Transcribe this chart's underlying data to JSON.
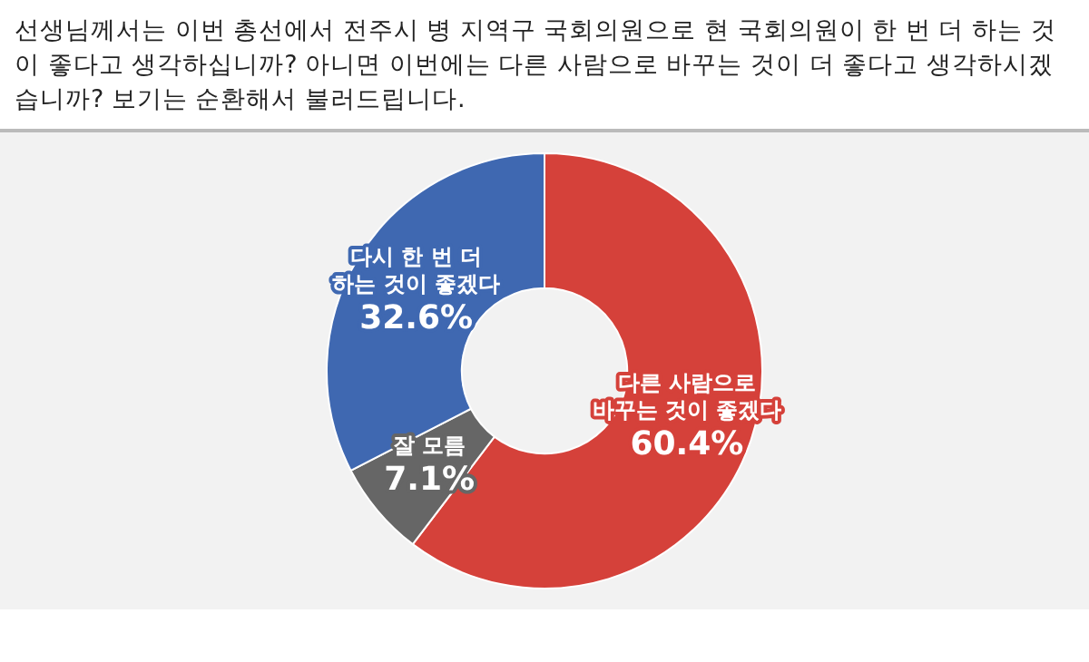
{
  "chart_data": {
    "type": "donut",
    "title": "선생님께서는 이번 총선에서 전주시 병 지역구 국회의원으로 현 국회의원이 한 번 더 하는 것이 좋다고 생각하십니까? 아니면 이번에는 다른 사람으로 바꾸는 것이 더 좋다고 생각하시겠습니까? 보기는 순환해서 불러드립니다.",
    "categories": [
      "다른 사람으로 바꾸는 것이 좋겠다",
      "잘 모름",
      "다시 한 번 더 하는 것이 좋겠다"
    ],
    "values": [
      60.4,
      7.1,
      32.6
    ],
    "colors": [
      "#d5413a",
      "#666666",
      "#3f68b1"
    ],
    "value_labels": [
      "60.4%",
      "7.1%",
      "32.6%"
    ],
    "legend": false
  }
}
